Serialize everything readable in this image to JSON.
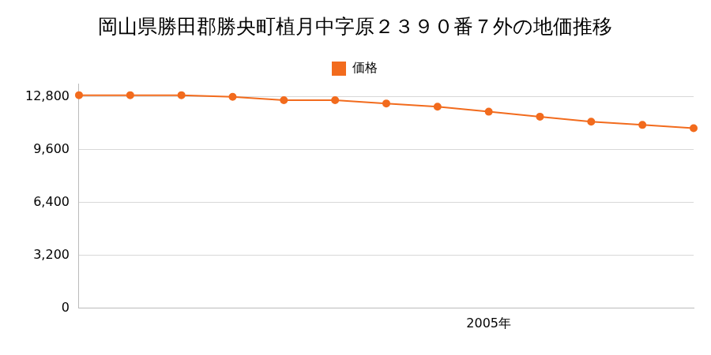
{
  "chart_data": {
    "type": "line",
    "title": "岡山県勝田郡勝央町植月中字原２３９０番７外の地価推移",
    "series": [
      {
        "name": "価格",
        "color": "#f26b1d",
        "marker": "circle",
        "values": [
          12900,
          12900,
          12900,
          12800,
          12600,
          12600,
          12400,
          12200,
          11900,
          11600,
          11300,
          11100,
          10900
        ]
      }
    ],
    "categories": [
      null,
      null,
      null,
      null,
      null,
      null,
      null,
      null,
      "2005年",
      null,
      null,
      null,
      null
    ],
    "ylim": [
      0,
      13600
    ],
    "yticks": [
      0,
      {
        "value": 3200,
        "label": "3,200"
      },
      {
        "value": 6400,
        "label": "6,400"
      },
      {
        "value": 9600,
        "label": "9,600"
      },
      {
        "value": 12800,
        "label": "12,800"
      }
    ],
    "grid": true,
    "legend": "top"
  }
}
